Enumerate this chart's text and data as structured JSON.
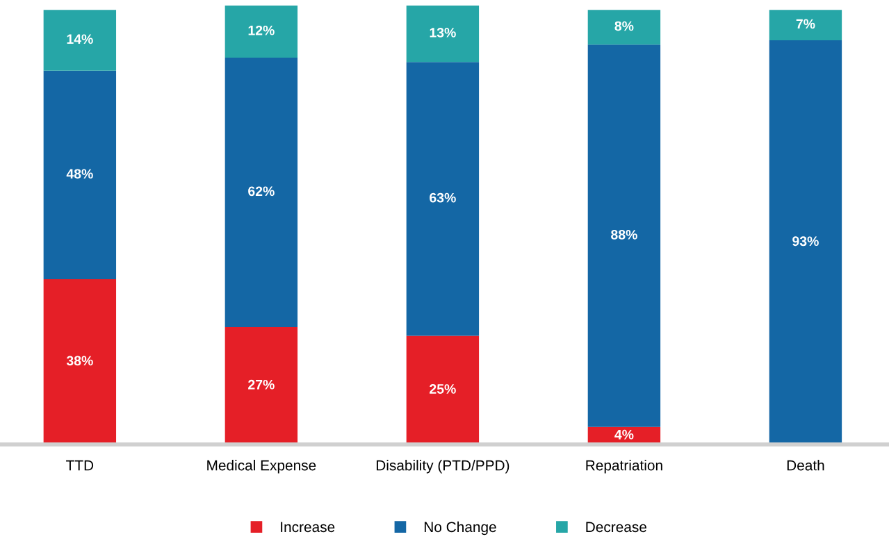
{
  "chart_data": {
    "type": "bar",
    "stacked": true,
    "legend": "bottom",
    "categories": [
      "TTD",
      "Medical Expense",
      "Disability (PTD/PPD)",
      "Repatriation",
      "Death"
    ],
    "series": [
      {
        "name": "Increase",
        "color": "#e51f27",
        "values": [
          38,
          27,
          25,
          4,
          null
        ],
        "value_labels": [
          "38%",
          "27%",
          "25%",
          "4%",
          null
        ]
      },
      {
        "name": "No Change",
        "color": "#1467a5",
        "values": [
          48,
          62,
          63,
          88,
          93
        ],
        "value_labels": [
          "48%",
          "62%",
          "63%",
          "88%",
          "93%"
        ]
      },
      {
        "name": "Decrease",
        "color": "#26a6a7",
        "values": [
          14,
          12,
          13,
          8,
          7
        ],
        "value_labels": [
          "14%",
          "12%",
          "13%",
          "8%",
          "7%"
        ]
      }
    ]
  }
}
